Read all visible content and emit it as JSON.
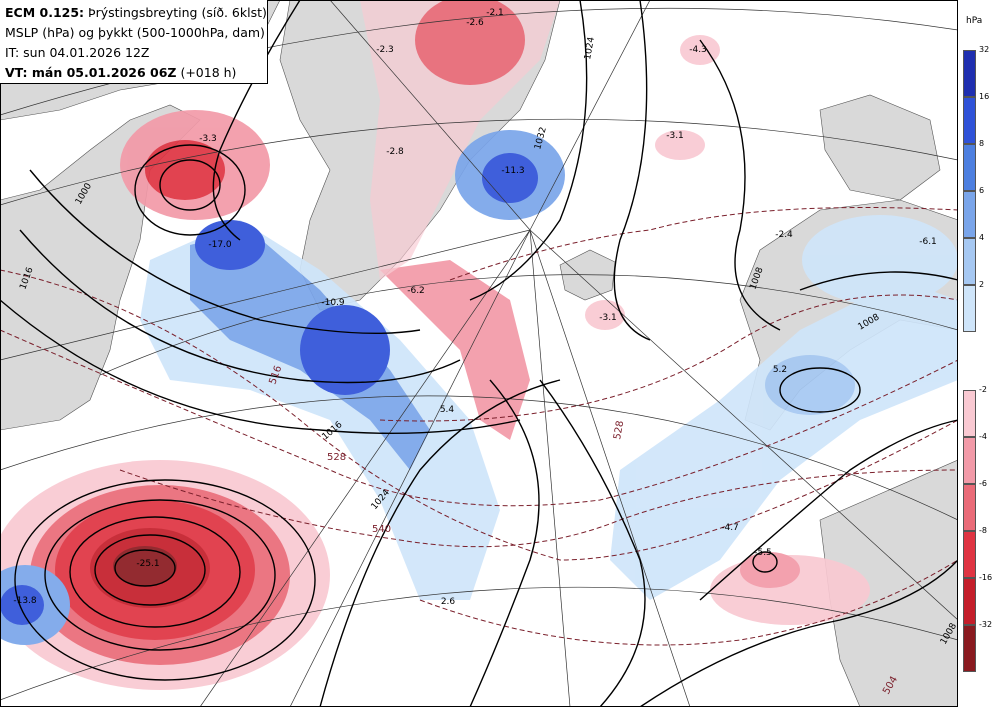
{
  "header": {
    "line1_bold": "ECM 0.125:",
    "line1_rest": " Þrýstingsbreyting (síð. 6klst)",
    "line2": "MSLP (hPa) og þykkt (500-1000hPa, dam)",
    "line3": "IT: sun 04.01.2026 12Z",
    "line4_bold": "VT: mán 05.01.2026 06Z",
    "line4_rest": " (+018 h)"
  },
  "legend": {
    "unit": "hPa",
    "positive": [
      {
        "label": "32",
        "color": "#1f2fb0"
      },
      {
        "label": "16",
        "color": "#2f52d8"
      },
      {
        "label": "8",
        "color": "#4d7fe0"
      },
      {
        "label": "6",
        "color": "#7aa5ea"
      },
      {
        "label": "4",
        "color": "#a6c8f2"
      },
      {
        "label": "2",
        "color": "#cfe5fa"
      }
    ],
    "negative": [
      {
        "label": "-2",
        "color": "#f9c9d2"
      },
      {
        "label": "-4",
        "color": "#f29aa8"
      },
      {
        "label": "-6",
        "color": "#ea6b78"
      },
      {
        "label": "-8",
        "color": "#df3442"
      },
      {
        "label": "-16",
        "color": "#c41e2a"
      },
      {
        "label": "-32",
        "color": "#8a1a1f"
      }
    ]
  },
  "pressure_change_labels": [
    {
      "value": "-17.0"
    },
    {
      "value": "-3.3"
    },
    {
      "value": "-10.9"
    },
    {
      "value": "-6.2"
    },
    {
      "value": "-2.8"
    },
    {
      "value": "-2.3"
    },
    {
      "value": "-2.1"
    },
    {
      "value": "-2.6"
    },
    {
      "value": "-4.3"
    },
    {
      "value": "-3.1"
    },
    {
      "value": "-3.1"
    },
    {
      "value": "-11.3"
    },
    {
      "value": "-2.4"
    },
    {
      "value": "-6.1"
    },
    {
      "value": "5.2"
    },
    {
      "value": "5.4"
    },
    {
      "value": "-4.7"
    },
    {
      "value": "-5.5"
    },
    {
      "value": "2.6"
    },
    {
      "value": "-13.8"
    },
    {
      "value": "-25.1"
    }
  ],
  "isobar_labels": [
    "1000",
    "1016",
    "1016",
    "1032",
    "1008",
    "1008",
    "1024",
    "1024",
    "1008"
  ],
  "thickness_labels": [
    "516",
    "528",
    "540",
    "528",
    "504"
  ],
  "colors": {
    "land": "#d9d9d9",
    "sea": "#ffffff",
    "isobar": "#000000",
    "thickness": "#7a1f2b"
  }
}
